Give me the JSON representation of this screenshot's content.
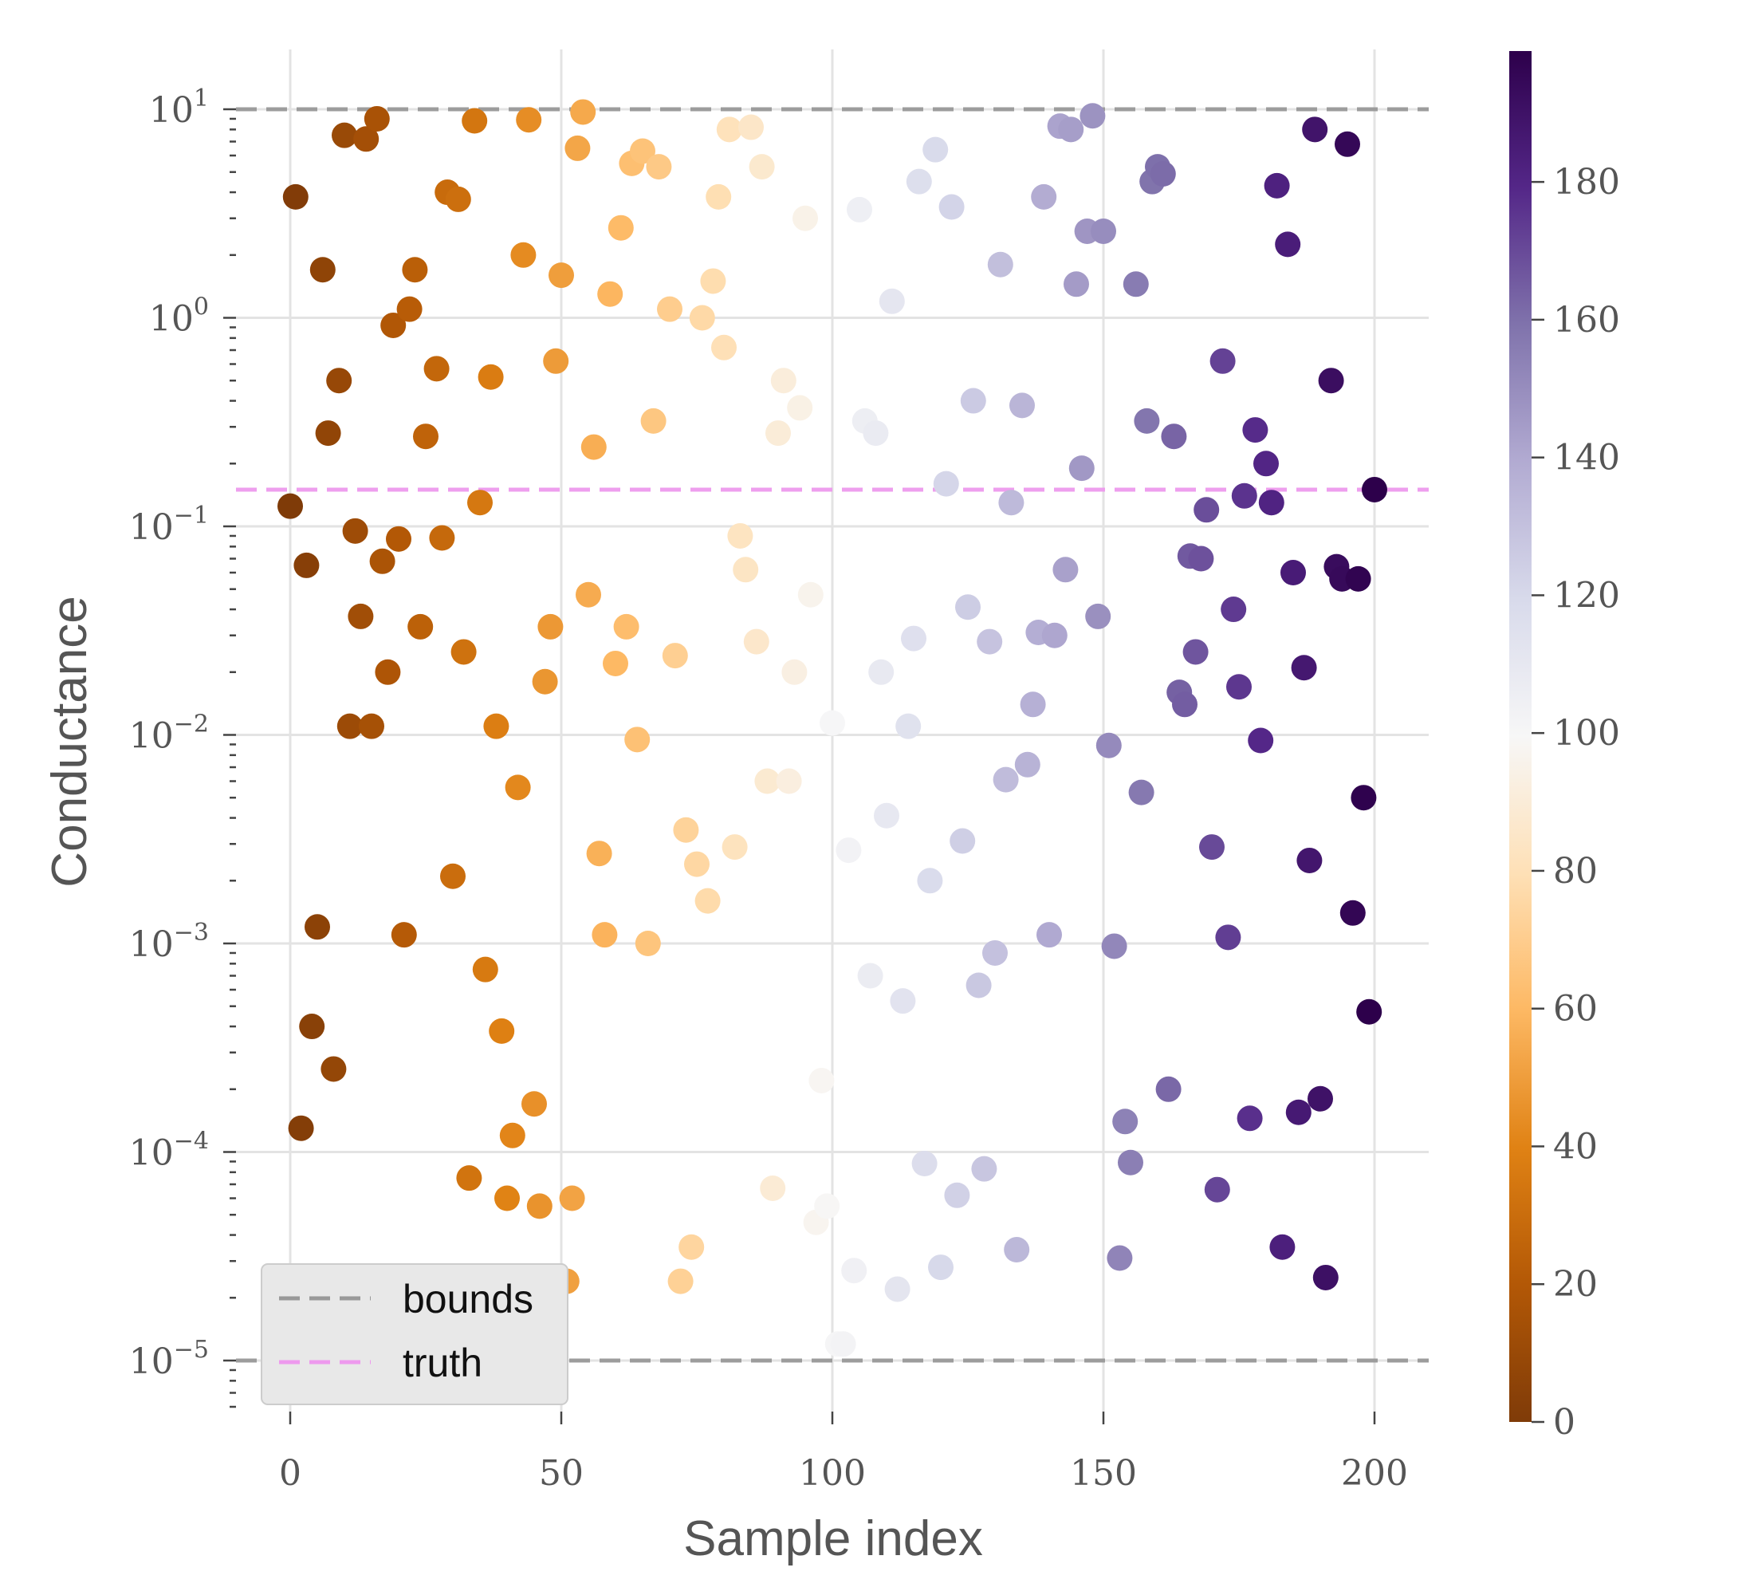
{
  "chart_data": {
    "type": "scatter",
    "xlabel": "Sample index",
    "ylabel": "Conductance",
    "xlim": [
      -10,
      210
    ],
    "ylim": [
      5.5e-06,
      15
    ],
    "yscale": "log",
    "x_ticks": [
      0,
      50,
      100,
      150,
      200
    ],
    "y_ticks": [
      {
        "value": 1e-05,
        "base": "10",
        "exp": "−5"
      },
      {
        "value": 0.0001,
        "base": "10",
        "exp": "−4"
      },
      {
        "value": 0.001,
        "base": "10",
        "exp": "−3"
      },
      {
        "value": 0.01,
        "base": "10",
        "exp": "−2"
      },
      {
        "value": 0.1,
        "base": "10",
        "exp": "−1"
      },
      {
        "value": 1,
        "base": "10",
        "exp": "0"
      },
      {
        "value": 10,
        "base": "10",
        "exp": "1"
      }
    ],
    "grid": true,
    "legend": {
      "position": "bottom-left",
      "entries": [
        {
          "label": "bounds",
          "color": "#999999",
          "style": "dashed"
        },
        {
          "label": "truth",
          "color": "#ee99ee",
          "style": "dashed"
        }
      ]
    },
    "reference_lines": [
      {
        "name": "bounds",
        "y": 10,
        "color": "#999999"
      },
      {
        "name": "bounds",
        "y": 1e-05,
        "color": "#999999"
      },
      {
        "name": "truth",
        "y": 0.15,
        "color": "#ee99ee"
      }
    ],
    "colorbar": {
      "colormap": "PuOr",
      "range": [
        0,
        199
      ],
      "ticks": [
        0,
        20,
        40,
        60,
        80,
        100,
        120,
        140,
        160,
        180
      ]
    },
    "points": [
      [
        0,
        0.125
      ],
      [
        1,
        3.8
      ],
      [
        2,
        0.00013
      ],
      [
        3,
        0.065
      ],
      [
        4,
        0.0004
      ],
      [
        5,
        0.0012
      ],
      [
        6,
        1.7
      ],
      [
        7,
        0.28
      ],
      [
        8,
        0.00025
      ],
      [
        9,
        0.5
      ],
      [
        10,
        7.5
      ],
      [
        11,
        0.011
      ],
      [
        12,
        0.095
      ],
      [
        13,
        0.037
      ],
      [
        14,
        7.2
      ],
      [
        15,
        0.011
      ],
      [
        16,
        9.0
      ],
      [
        17,
        0.068
      ],
      [
        18,
        0.02
      ],
      [
        19,
        0.92
      ],
      [
        20,
        0.087
      ],
      [
        21,
        0.0011
      ],
      [
        22,
        1.1
      ],
      [
        23,
        1.7
      ],
      [
        24,
        0.033
      ],
      [
        25,
        0.27
      ],
      [
        26,
        1.5e-05
      ],
      [
        27,
        0.57
      ],
      [
        28,
        0.088
      ],
      [
        29,
        4.0
      ],
      [
        30,
        0.0021
      ],
      [
        31,
        3.7
      ],
      [
        32,
        0.025
      ],
      [
        33,
        7.5e-05
      ],
      [
        34,
        8.8
      ],
      [
        35,
        0.13
      ],
      [
        36,
        0.00075
      ],
      [
        37,
        0.52
      ],
      [
        38,
        0.011
      ],
      [
        39,
        0.00038
      ],
      [
        40,
        6e-05
      ],
      [
        41,
        0.00012
      ],
      [
        42,
        0.0056
      ],
      [
        43,
        2.0
      ],
      [
        44,
        8.9
      ],
      [
        45,
        0.00017
      ],
      [
        46,
        5.5e-05
      ],
      [
        47,
        0.018
      ],
      [
        48,
        0.033
      ],
      [
        49,
        0.62
      ],
      [
        50,
        1.6
      ],
      [
        51,
        2.4e-05
      ],
      [
        52,
        6e-05
      ],
      [
        53,
        6.5
      ],
      [
        54,
        9.7
      ],
      [
        55,
        0.047
      ],
      [
        56,
        0.24
      ],
      [
        57,
        0.0027
      ],
      [
        58,
        0.0011
      ],
      [
        59,
        1.3
      ],
      [
        60,
        0.022
      ],
      [
        61,
        2.7
      ],
      [
        62,
        0.033
      ],
      [
        63,
        5.5
      ],
      [
        64,
        0.0095
      ],
      [
        65,
        6.3
      ],
      [
        66,
        0.001
      ],
      [
        67,
        0.32
      ],
      [
        68,
        5.3
      ],
      [
        70,
        1.1
      ],
      [
        71,
        0.024
      ],
      [
        72,
        2.4e-05
      ],
      [
        73,
        0.0035
      ],
      [
        74,
        3.5e-05
      ],
      [
        75,
        0.0024
      ],
      [
        76,
        1.0
      ],
      [
        77,
        0.0016
      ],
      [
        78,
        1.5
      ],
      [
        79,
        3.8
      ],
      [
        80,
        0.72
      ],
      [
        81,
        8.0
      ],
      [
        82,
        0.0029
      ],
      [
        83,
        0.09
      ],
      [
        84,
        0.062
      ],
      [
        85,
        8.2
      ],
      [
        86,
        0.028
      ],
      [
        87,
        5.3
      ],
      [
        88,
        0.006
      ],
      [
        89,
        6.7e-05
      ],
      [
        90,
        0.28
      ],
      [
        91,
        0.5
      ],
      [
        92,
        0.006
      ],
      [
        93,
        0.02
      ],
      [
        94,
        0.37
      ],
      [
        95,
        3.0
      ],
      [
        96,
        0.047
      ],
      [
        97,
        4.6e-05
      ],
      [
        98,
        0.00022
      ],
      [
        99,
        5.5e-05
      ],
      [
        100,
        0.0114
      ],
      [
        101,
        1.2e-05
      ],
      [
        102,
        1.2e-05
      ],
      [
        103,
        0.0028
      ],
      [
        104,
        2.7e-05
      ],
      [
        105,
        3.3
      ],
      [
        106,
        0.32
      ],
      [
        107,
        0.0007
      ],
      [
        108,
        0.28
      ],
      [
        109,
        0.02
      ],
      [
        110,
        0.0041
      ],
      [
        111,
        1.2
      ],
      [
        112,
        2.2e-05
      ],
      [
        113,
        0.00053
      ],
      [
        114,
        0.011
      ],
      [
        115,
        0.029
      ],
      [
        116,
        4.5
      ],
      [
        117,
        8.8e-05
      ],
      [
        118,
        0.002
      ],
      [
        119,
        6.4
      ],
      [
        120,
        2.8e-05
      ],
      [
        121,
        0.16
      ],
      [
        122,
        3.4
      ],
      [
        123,
        6.2e-05
      ],
      [
        124,
        0.0031
      ],
      [
        125,
        0.041
      ],
      [
        126,
        0.4
      ],
      [
        127,
        0.00063
      ],
      [
        128,
        8.3e-05
      ],
      [
        129,
        0.028
      ],
      [
        130,
        0.0009
      ],
      [
        131,
        1.8
      ],
      [
        132,
        0.0061
      ],
      [
        133,
        0.13
      ],
      [
        134,
        3.4e-05
      ],
      [
        135,
        0.38
      ],
      [
        136,
        0.0072
      ],
      [
        137,
        0.014
      ],
      [
        138,
        0.031
      ],
      [
        139,
        3.8
      ],
      [
        140,
        0.0011
      ],
      [
        141,
        0.03
      ],
      [
        142,
        8.3
      ],
      [
        143,
        0.062
      ],
      [
        144,
        8.0
      ],
      [
        145,
        1.45
      ],
      [
        146,
        0.19
      ],
      [
        147,
        2.6
      ],
      [
        148,
        9.3
      ],
      [
        149,
        0.037
      ],
      [
        150,
        2.6
      ],
      [
        151,
        0.0089
      ],
      [
        152,
        0.00097
      ],
      [
        153,
        3.1e-05
      ],
      [
        154,
        0.00014
      ],
      [
        155,
        8.9e-05
      ],
      [
        156,
        1.45
      ],
      [
        157,
        0.0053
      ],
      [
        158,
        0.32
      ],
      [
        159,
        4.5
      ],
      [
        160,
        5.3
      ],
      [
        161,
        4.9
      ],
      [
        162,
        0.0002
      ],
      [
        163,
        0.27
      ],
      [
        164,
        0.016
      ],
      [
        165,
        0.014
      ],
      [
        166,
        0.072
      ],
      [
        167,
        0.025
      ],
      [
        168,
        0.07
      ],
      [
        169,
        0.12
      ],
      [
        170,
        0.0029
      ],
      [
        171,
        6.6e-05
      ],
      [
        172,
        0.62
      ],
      [
        173,
        0.00107
      ],
      [
        174,
        0.04
      ],
      [
        175,
        0.017
      ],
      [
        176,
        0.14
      ],
      [
        177,
        0.000145
      ],
      [
        178,
        0.29
      ],
      [
        179,
        0.0094
      ],
      [
        180,
        0.2
      ],
      [
        181,
        0.13
      ],
      [
        182,
        4.3
      ],
      [
        183,
        3.5e-05
      ],
      [
        184,
        2.25
      ],
      [
        185,
        0.06
      ],
      [
        186,
        0.000155
      ],
      [
        187,
        0.021
      ],
      [
        188,
        0.0025
      ],
      [
        189,
        8.0
      ],
      [
        190,
        0.00018
      ],
      [
        191,
        2.5e-05
      ],
      [
        192,
        0.5
      ],
      [
        193,
        0.064
      ],
      [
        194,
        0.056
      ],
      [
        195,
        6.8
      ],
      [
        196,
        0.0014
      ],
      [
        197,
        0.056
      ],
      [
        198,
        0.005
      ],
      [
        199,
        0.00047
      ],
      [
        200,
        0.15
      ]
    ]
  }
}
